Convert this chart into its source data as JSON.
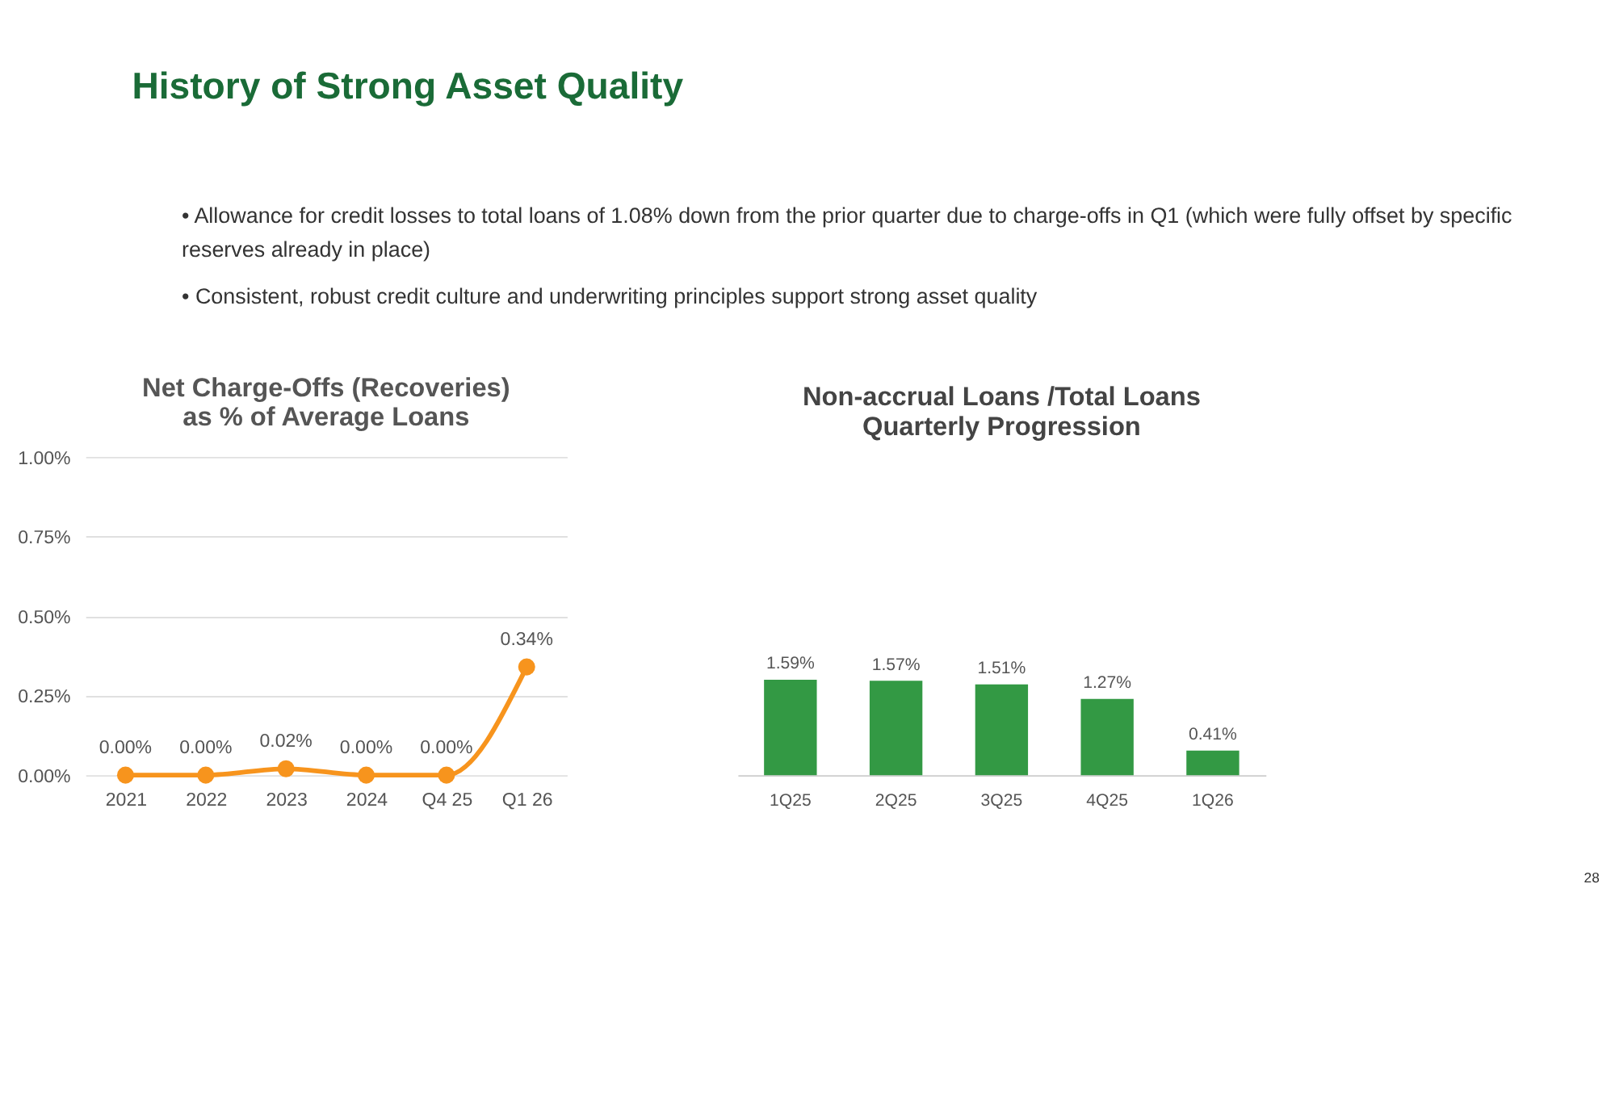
{
  "chart_data": [
    {
      "type": "other",
      "title": "History of Strong Asset Quality",
      "annotations": [
        "•  Allowance for credit losses to total loans of 1.08% down from the prior quarter due to charge-offs in Q1 (which were fully offset by specific",
        "    reserves already in place)",
        "•  Consistent, robust credit culture and underwriting principles support strong asset quality",
        "28"
      ]
    },
    {
      "type": "line",
      "title": [
        "Net Charge-Offs (Recoveries)",
        "as % of Average Loans"
      ],
      "categories": [
        "2021",
        "2022",
        "2023",
        "2024",
        "Q4 25",
        "Q1 26"
      ],
      "series": [
        {
          "color": "#f7941d",
          "values": [
            0.0,
            0.0,
            0.02,
            0.0,
            0.0,
            0.34
          ],
          "value_labels": [
            "0.00%",
            "0.00%",
            "0.02%",
            "0.00%",
            "0.00%",
            "0.34%"
          ]
        }
      ],
      "ylim": [
        0,
        1
      ],
      "yticks": [
        {
          "value": 0,
          "label": "0.00%"
        },
        {
          "value": 0.25,
          "label": "0.25%"
        },
        {
          "value": 0.5,
          "label": "0.50%"
        },
        {
          "value": 0.75,
          "label": "0.75%"
        },
        {
          "value": 1,
          "label": "1.00%"
        }
      ],
      "grid": "y",
      "marker": "circle",
      "legend": false
    },
    {
      "type": "bar",
      "title": [
        "Non-accrual Loans /Total Loans",
        "Quarterly Progression"
      ],
      "categories": [
        "1Q25",
        "2Q25",
        "3Q25",
        "4Q25",
        "1Q26"
      ],
      "series": [
        {
          "color": "#339944",
          "values": [
            1.59,
            1.57,
            1.51,
            1.27,
            0.41
          ],
          "value_labels": [
            "1.59%",
            "1.57%",
            "1.51%",
            "1.27%",
            "0.41%"
          ]
        }
      ],
      "legend": false
    }
  ]
}
